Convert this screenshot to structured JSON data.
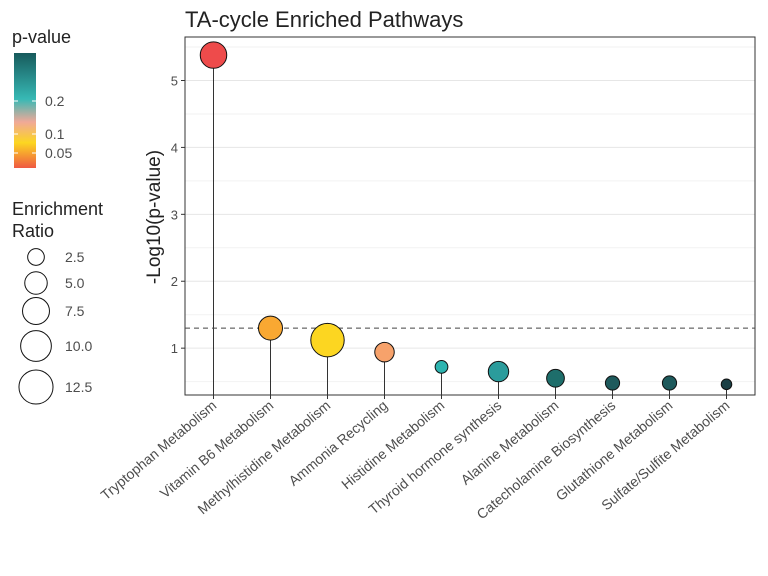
{
  "chart_data": {
    "type": "scatter",
    "title": "TA-cycle Enriched Pathways",
    "xlabel": "",
    "ylabel": "-Log10(p-value)",
    "ylim": [
      0.3,
      5.65
    ],
    "yticks": [
      1,
      2,
      3,
      4,
      5
    ],
    "threshold": 1.3,
    "categories": [
      "Tryptophan Metabolism",
      "Vitamin B6 Metabolism",
      "Methylhistidine Metabolism",
      "Ammonia Recycling",
      "Histidine Metabolism",
      "Thyroid hormone synthesis",
      "Alanine Metabolism",
      "Catecholamine Biosynthesis",
      "Glutathione Metabolism",
      "Sulfate/Sulfite Metabolism"
    ],
    "values": [
      5.38,
      1.3,
      1.12,
      0.94,
      0.72,
      0.65,
      0.55,
      0.48,
      0.48,
      0.46
    ],
    "enrichment_ratio": [
      7.2,
      5.8,
      12.0,
      3.6,
      1.3,
      4.0,
      2.9,
      1.7,
      1.7,
      0.8
    ],
    "point_colors": [
      "#ee4b4b",
      "#f9a832",
      "#fcd621",
      "#f7a26b",
      "#2db4b0",
      "#2b9c9c",
      "#1e6e6b",
      "#1e5a5c",
      "#1e5a5c",
      "#1b3f44"
    ],
    "grid": true,
    "legend": {
      "color_title": "p-value",
      "color_ticks": [
        "0.2",
        "0.1",
        "0.05"
      ],
      "gradient": [
        "#ef5a43",
        "#fcd621",
        "#f0a998",
        "#37b9b5",
        "#175a5c"
      ],
      "size_title_line1": "Enrichment",
      "size_title_line2": "Ratio",
      "size_labels": [
        "2.5",
        "5.0",
        "7.5",
        "10.0",
        "12.5"
      ],
      "size_values": [
        2.5,
        5.0,
        7.5,
        10.0,
        12.5
      ],
      "placement": "left"
    }
  }
}
